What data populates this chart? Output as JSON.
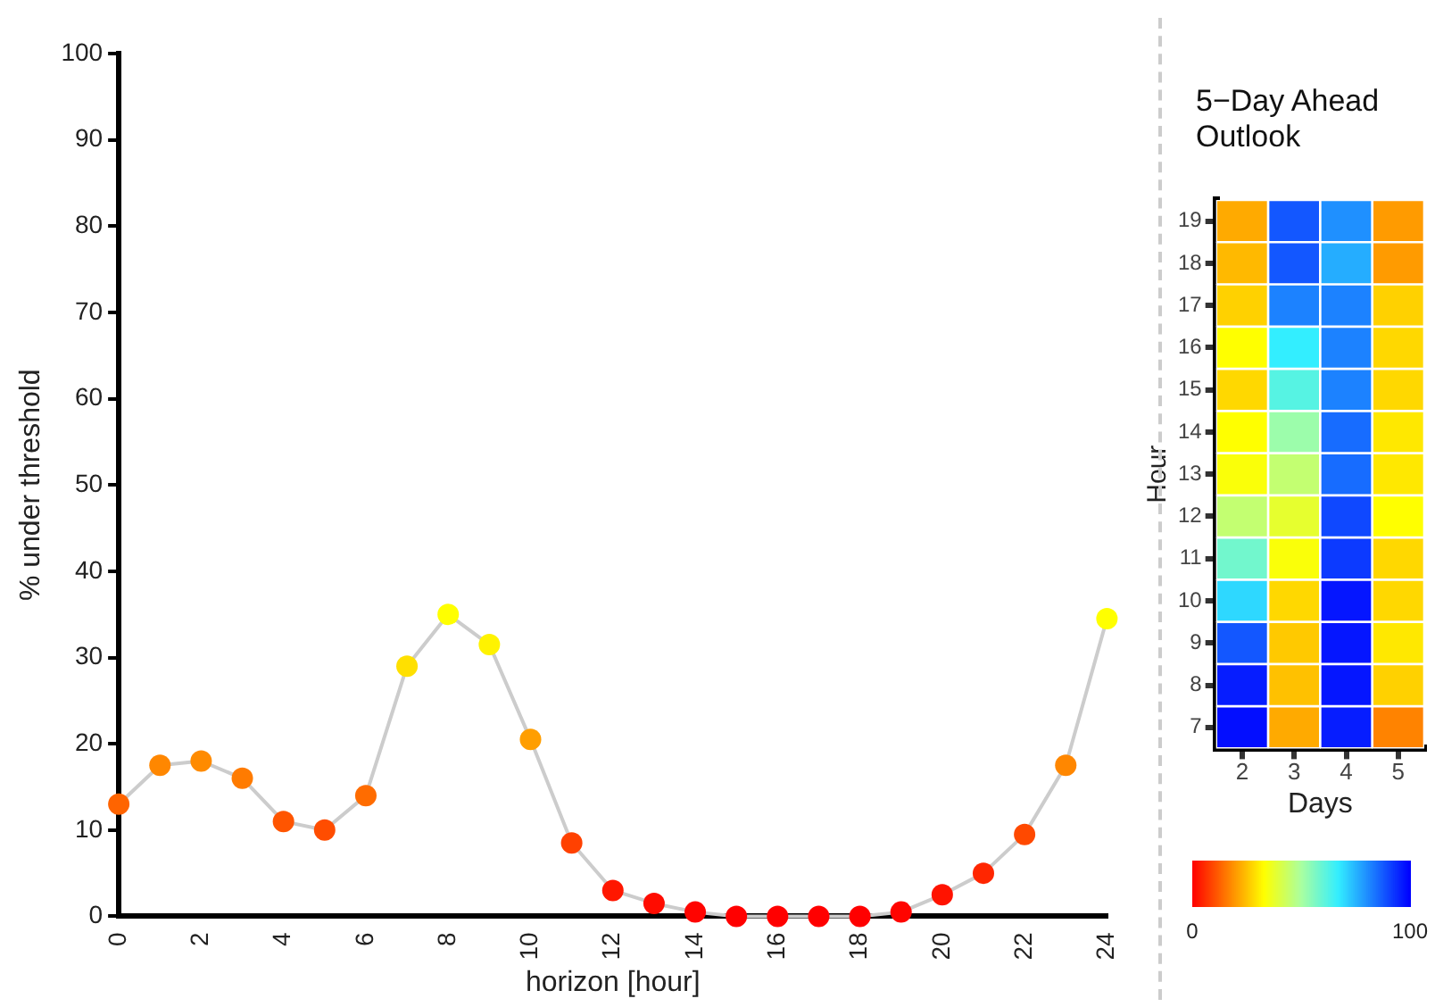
{
  "chart_data": [
    {
      "type": "line",
      "xlabel": "horizon [hour]",
      "ylabel": "% under threshold",
      "x": [
        0,
        1,
        2,
        3,
        4,
        5,
        6,
        7,
        8,
        9,
        10,
        11,
        12,
        13,
        14,
        15,
        16,
        17,
        18,
        19,
        20,
        21,
        22,
        23,
        24
      ],
      "series": [
        {
          "color": "#cccccc",
          "values": [
            13,
            17.5,
            18,
            16,
            11,
            10,
            14,
            29,
            35,
            31.5,
            20.5,
            8.5,
            3,
            1.5,
            0.5,
            0,
            0,
            0,
            0,
            0.5,
            2.5,
            5,
            9.5,
            17.5,
            34.5
          ],
          "colors": [
            "#ff6400",
            "#ff8700",
            "#ff8b00",
            "#ff7b00",
            "#ff5500",
            "#ff4d00",
            "#ff6c00",
            "#ffe000",
            "#ffff00",
            "#fff300",
            "#ff9e00",
            "#ff4100",
            "#ff1700",
            "#ff0c00",
            "#ff0400",
            "#ff0000",
            "#ff0000",
            "#ff0000",
            "#ff0000",
            "#ff0400",
            "#ff1300",
            "#ff2600",
            "#ff4900",
            "#ff8700",
            "#ffff00"
          ]
        }
      ],
      "marker": "circle",
      "xlim": [
        0,
        24
      ],
      "xticks": [
        0,
        2,
        4,
        6,
        8,
        10,
        12,
        14,
        16,
        18,
        20,
        22,
        24
      ],
      "ylim": [
        0,
        100
      ],
      "yticks": [
        0,
        10,
        20,
        30,
        40,
        50,
        60,
        70,
        80,
        90,
        100
      ],
      "grid": false,
      "legend": false
    },
    {
      "type": "heatmap",
      "title": "5−Day Ahead Outlook",
      "xlabel": "Days",
      "ylabel": "Hour",
      "categories": [
        "2",
        "3",
        "4",
        "5"
      ],
      "y_categories": [
        "19",
        "18",
        "17",
        "16",
        "15",
        "14",
        "13",
        "12",
        "11",
        "10",
        "9",
        "8",
        "7"
      ],
      "cells": [
        [
          22,
          88,
          80,
          20
        ],
        [
          24,
          88,
          76,
          20
        ],
        [
          27,
          82,
          82,
          27
        ],
        [
          33,
          67,
          82,
          28
        ],
        [
          28,
          62,
          82,
          28
        ],
        [
          33,
          52,
          85,
          30
        ],
        [
          34,
          45,
          85,
          30
        ],
        [
          45,
          38,
          90,
          33
        ],
        [
          58,
          34,
          92,
          28
        ],
        [
          70,
          28,
          97,
          28
        ],
        [
          88,
          26,
          97,
          30
        ],
        [
          96,
          25,
          97,
          27
        ],
        [
          98,
          22,
          96,
          17
        ]
      ],
      "clim": [
        0,
        100
      ],
      "cticks": [
        0,
        100
      ]
    }
  ]
}
